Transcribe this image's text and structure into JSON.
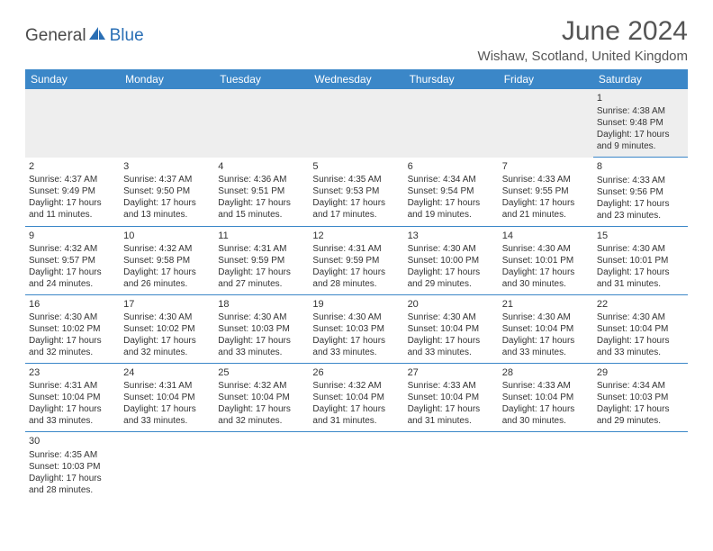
{
  "logo": {
    "part1": "General",
    "part2": "Blue"
  },
  "title": "June 2024",
  "location": "Wishaw, Scotland, United Kingdom",
  "colors": {
    "header_bg": "#3b87c8",
    "header_fg": "#ffffff",
    "divider": "#3b87c8",
    "logo_gray": "#4a4a4a",
    "logo_blue": "#2a6fb5",
    "text": "#333333",
    "title_text": "#555555",
    "alt_row": "#eeeeee"
  },
  "day_headers": [
    "Sunday",
    "Monday",
    "Tuesday",
    "Wednesday",
    "Thursday",
    "Friday",
    "Saturday"
  ],
  "weeks": [
    [
      null,
      null,
      null,
      null,
      null,
      null,
      {
        "n": "1",
        "sr": "4:38 AM",
        "ss": "9:48 PM",
        "dl": "17 hours and 9 minutes."
      }
    ],
    [
      {
        "n": "2",
        "sr": "4:37 AM",
        "ss": "9:49 PM",
        "dl": "17 hours and 11 minutes."
      },
      {
        "n": "3",
        "sr": "4:37 AM",
        "ss": "9:50 PM",
        "dl": "17 hours and 13 minutes."
      },
      {
        "n": "4",
        "sr": "4:36 AM",
        "ss": "9:51 PM",
        "dl": "17 hours and 15 minutes."
      },
      {
        "n": "5",
        "sr": "4:35 AM",
        "ss": "9:53 PM",
        "dl": "17 hours and 17 minutes."
      },
      {
        "n": "6",
        "sr": "4:34 AM",
        "ss": "9:54 PM",
        "dl": "17 hours and 19 minutes."
      },
      {
        "n": "7",
        "sr": "4:33 AM",
        "ss": "9:55 PM",
        "dl": "17 hours and 21 minutes."
      },
      {
        "n": "8",
        "sr": "4:33 AM",
        "ss": "9:56 PM",
        "dl": "17 hours and 23 minutes."
      }
    ],
    [
      {
        "n": "9",
        "sr": "4:32 AM",
        "ss": "9:57 PM",
        "dl": "17 hours and 24 minutes."
      },
      {
        "n": "10",
        "sr": "4:32 AM",
        "ss": "9:58 PM",
        "dl": "17 hours and 26 minutes."
      },
      {
        "n": "11",
        "sr": "4:31 AM",
        "ss": "9:59 PM",
        "dl": "17 hours and 27 minutes."
      },
      {
        "n": "12",
        "sr": "4:31 AM",
        "ss": "9:59 PM",
        "dl": "17 hours and 28 minutes."
      },
      {
        "n": "13",
        "sr": "4:30 AM",
        "ss": "10:00 PM",
        "dl": "17 hours and 29 minutes."
      },
      {
        "n": "14",
        "sr": "4:30 AM",
        "ss": "10:01 PM",
        "dl": "17 hours and 30 minutes."
      },
      {
        "n": "15",
        "sr": "4:30 AM",
        "ss": "10:01 PM",
        "dl": "17 hours and 31 minutes."
      }
    ],
    [
      {
        "n": "16",
        "sr": "4:30 AM",
        "ss": "10:02 PM",
        "dl": "17 hours and 32 minutes."
      },
      {
        "n": "17",
        "sr": "4:30 AM",
        "ss": "10:02 PM",
        "dl": "17 hours and 32 minutes."
      },
      {
        "n": "18",
        "sr": "4:30 AM",
        "ss": "10:03 PM",
        "dl": "17 hours and 33 minutes."
      },
      {
        "n": "19",
        "sr": "4:30 AM",
        "ss": "10:03 PM",
        "dl": "17 hours and 33 minutes."
      },
      {
        "n": "20",
        "sr": "4:30 AM",
        "ss": "10:04 PM",
        "dl": "17 hours and 33 minutes."
      },
      {
        "n": "21",
        "sr": "4:30 AM",
        "ss": "10:04 PM",
        "dl": "17 hours and 33 minutes."
      },
      {
        "n": "22",
        "sr": "4:30 AM",
        "ss": "10:04 PM",
        "dl": "17 hours and 33 minutes."
      }
    ],
    [
      {
        "n": "23",
        "sr": "4:31 AM",
        "ss": "10:04 PM",
        "dl": "17 hours and 33 minutes."
      },
      {
        "n": "24",
        "sr": "4:31 AM",
        "ss": "10:04 PM",
        "dl": "17 hours and 33 minutes."
      },
      {
        "n": "25",
        "sr": "4:32 AM",
        "ss": "10:04 PM",
        "dl": "17 hours and 32 minutes."
      },
      {
        "n": "26",
        "sr": "4:32 AM",
        "ss": "10:04 PM",
        "dl": "17 hours and 31 minutes."
      },
      {
        "n": "27",
        "sr": "4:33 AM",
        "ss": "10:04 PM",
        "dl": "17 hours and 31 minutes."
      },
      {
        "n": "28",
        "sr": "4:33 AM",
        "ss": "10:04 PM",
        "dl": "17 hours and 30 minutes."
      },
      {
        "n": "29",
        "sr": "4:34 AM",
        "ss": "10:03 PM",
        "dl": "17 hours and 29 minutes."
      }
    ],
    [
      {
        "n": "30",
        "sr": "4:35 AM",
        "ss": "10:03 PM",
        "dl": "17 hours and 28 minutes."
      },
      null,
      null,
      null,
      null,
      null,
      null
    ]
  ],
  "labels": {
    "sunrise": "Sunrise: ",
    "sunset": "Sunset: ",
    "daylight": "Daylight: "
  }
}
